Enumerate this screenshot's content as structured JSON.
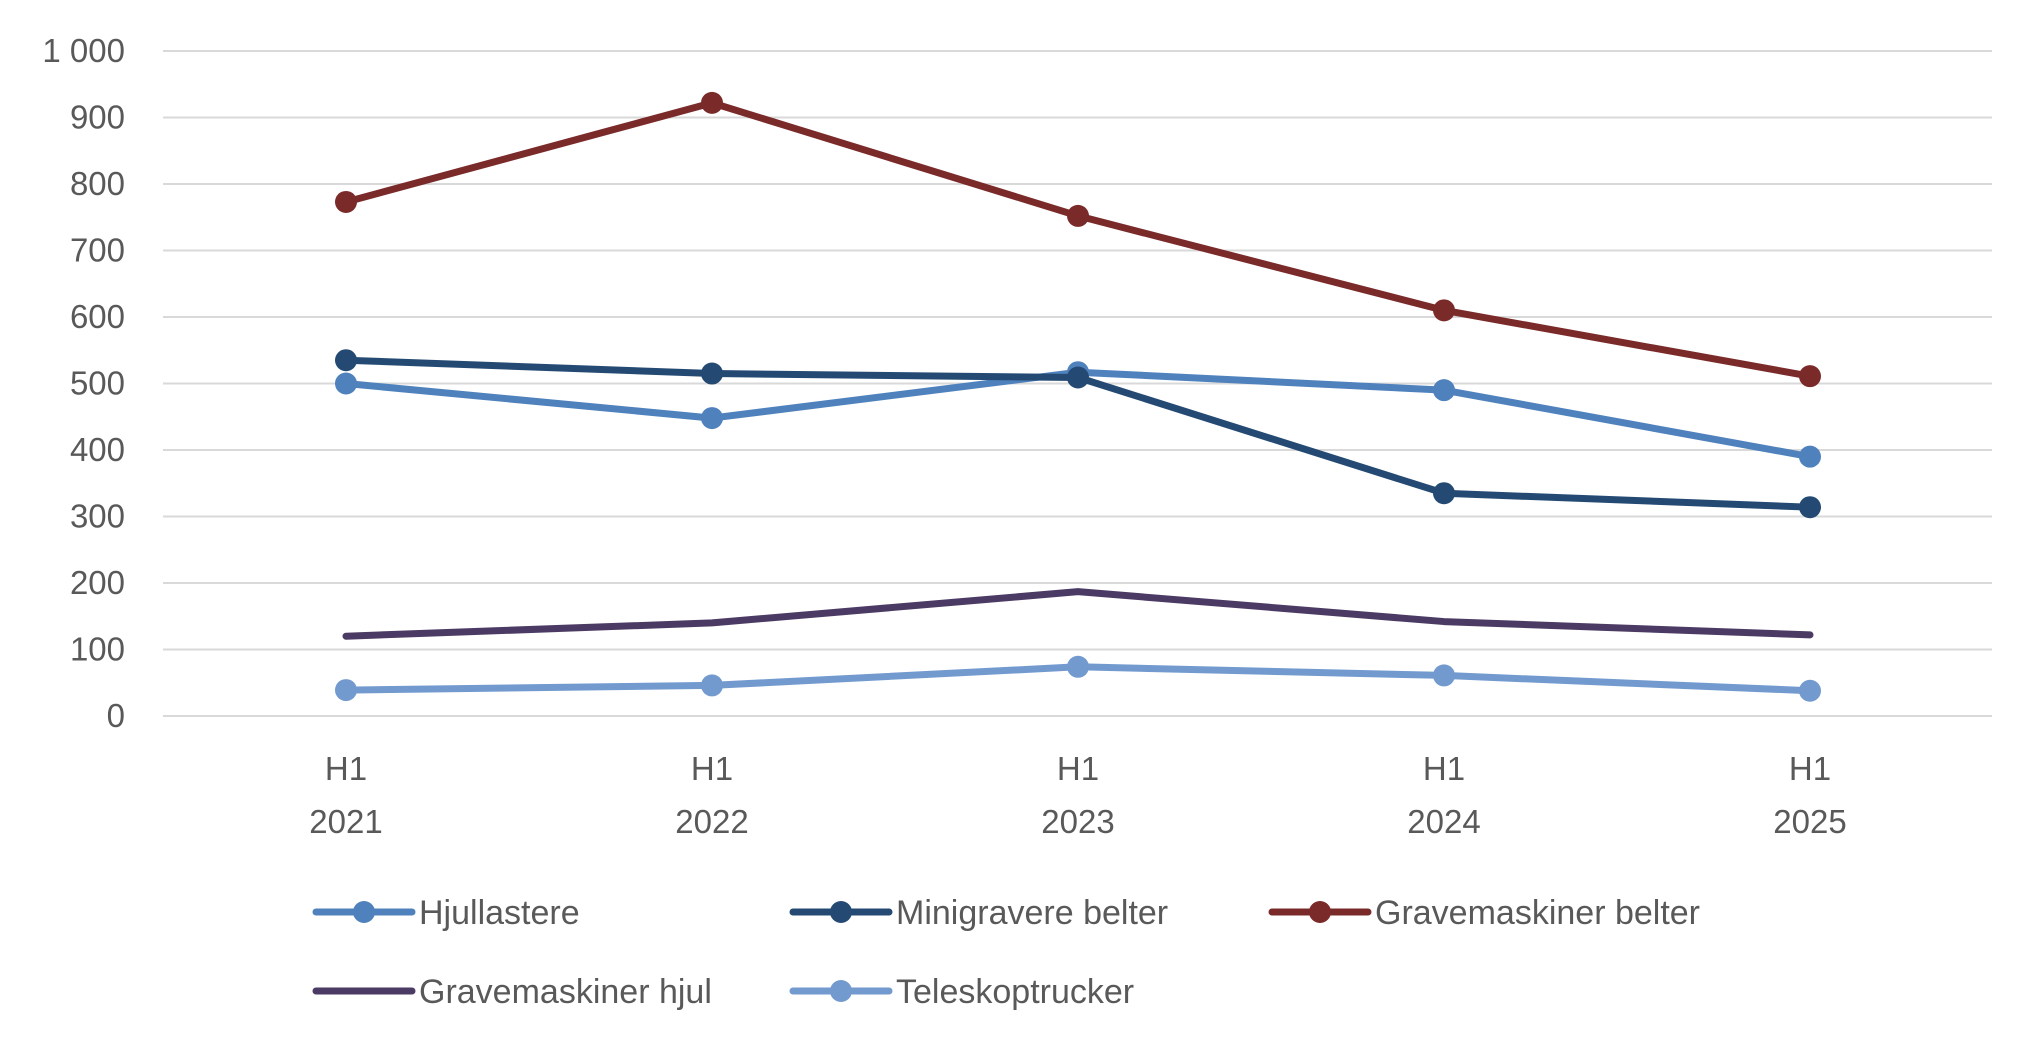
{
  "chart_data": {
    "type": "line",
    "title": "",
    "xlabel": "",
    "ylabel": "",
    "ylim": [
      0,
      1000
    ],
    "yticks": [
      0,
      100,
      200,
      300,
      400,
      500,
      600,
      700,
      800,
      900,
      1000
    ],
    "ytick_labels": [
      "0",
      "100",
      "200",
      "300",
      "400",
      "500",
      "600",
      "700",
      "800",
      "900",
      "1 000"
    ],
    "categories": [
      {
        "line1": "H1",
        "line2": "2021"
      },
      {
        "line1": "H1",
        "line2": "2022"
      },
      {
        "line1": "H1",
        "line2": "2023"
      },
      {
        "line1": "H1",
        "line2": "2024"
      },
      {
        "line1": "H1",
        "line2": "2025"
      }
    ],
    "grid": true,
    "legend_position": "bottom",
    "series": [
      {
        "name": "Hjullastere",
        "values": [
          500,
          448,
          517,
          490,
          390
        ],
        "color": "#4F81BD",
        "markers": true
      },
      {
        "name": "Minigravere belter",
        "values": [
          535,
          515,
          509,
          335,
          314
        ],
        "color": "#244A73",
        "markers": true
      },
      {
        "name": "Gravemaskiner belter",
        "values": [
          773,
          922,
          752,
          610,
          511
        ],
        "color": "#7B2A2A",
        "markers": true
      },
      {
        "name": "Gravemaskiner hjul",
        "values": [
          120,
          140,
          187,
          142,
          122
        ],
        "color": "#4B3A63",
        "markers": false
      },
      {
        "name": "Teleskoptrucker",
        "values": [
          39,
          46,
          74,
          61,
          38
        ],
        "color": "#729ACF",
        "markers": true
      }
    ]
  }
}
